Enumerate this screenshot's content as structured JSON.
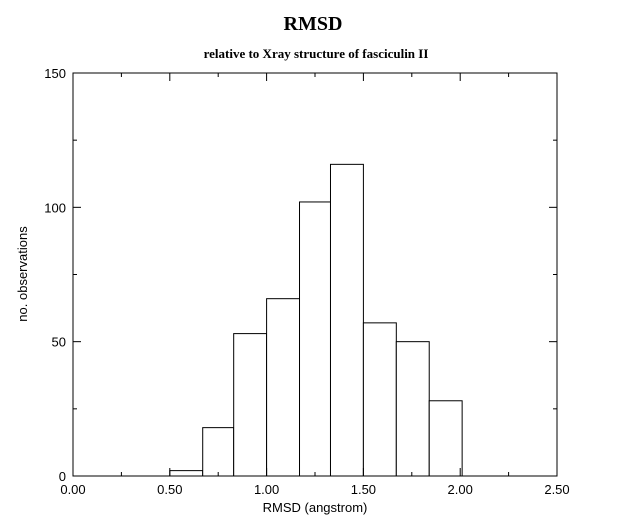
{
  "chart_data": {
    "type": "bar",
    "title": "RMSD",
    "subtitle": "relative to Xray structure of fasciculin II",
    "xlabel": "RMSD (angstrom)",
    "ylabel": "no. observations",
    "xlim": [
      0,
      2.5
    ],
    "ylim": [
      0,
      150
    ],
    "x_ticks": [
      "0.00",
      "0.50",
      "1.00",
      "1.50",
      "2.00",
      "2.50"
    ],
    "y_ticks": [
      "0",
      "50",
      "100",
      "150"
    ],
    "grid": false,
    "bins": [
      {
        "x0": 0.5,
        "x1": 0.67,
        "value": 2
      },
      {
        "x0": 0.67,
        "x1": 0.83,
        "value": 18
      },
      {
        "x0": 0.83,
        "x1": 1.0,
        "value": 53
      },
      {
        "x0": 1.0,
        "x1": 1.17,
        "value": 66
      },
      {
        "x0": 1.17,
        "x1": 1.33,
        "value": 102
      },
      {
        "x0": 1.33,
        "x1": 1.5,
        "value": 116
      },
      {
        "x0": 1.5,
        "x1": 1.67,
        "value": 57
      },
      {
        "x0": 1.67,
        "x1": 1.84,
        "value": 50
      },
      {
        "x0": 1.84,
        "x1": 2.01,
        "value": 28
      }
    ]
  }
}
